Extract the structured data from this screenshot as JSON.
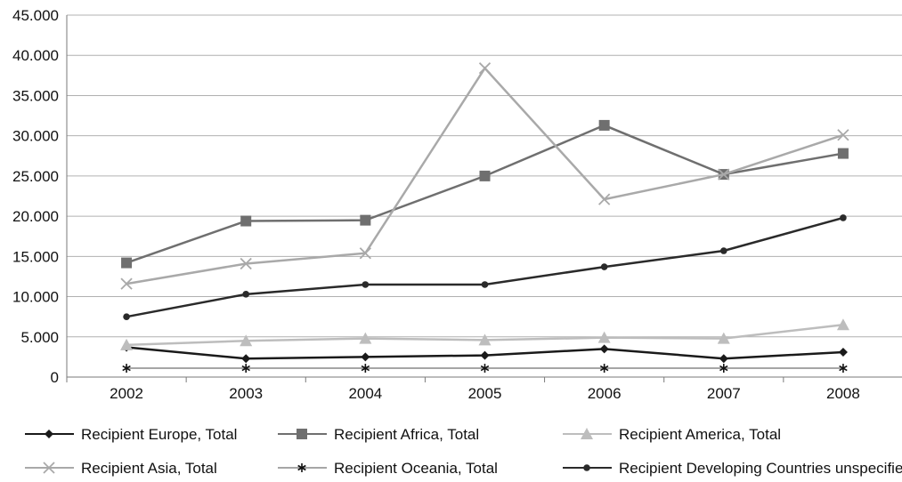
{
  "chart_data": {
    "type": "line",
    "title": "",
    "xlabel": "",
    "ylabel": "",
    "categories": [
      "2002",
      "2003",
      "2004",
      "2005",
      "2006",
      "2007",
      "2008"
    ],
    "ylim": [
      0,
      45000
    ],
    "y_ticks": [
      "0",
      "5.000",
      "10.000",
      "15.000",
      "20.000",
      "25.000",
      "30.000",
      "35.000",
      "40.000",
      "45.000"
    ],
    "grid": "horizontal",
    "legend_position": "bottom",
    "series": [
      {
        "name": "Recipient Europe, Total",
        "values": [
          3700,
          2300,
          2500,
          2700,
          3500,
          2300,
          3100
        ],
        "color": "#1a1a1a",
        "marker": "diamond"
      },
      {
        "name": "Recipient Africa, Total",
        "values": [
          14200,
          19400,
          19500,
          25000,
          31300,
          25200,
          27800
        ],
        "color": "#6f6f6f",
        "marker": "square"
      },
      {
        "name": "Recipient America, Total",
        "values": [
          4000,
          4500,
          4800,
          4600,
          4900,
          4800,
          6500
        ],
        "color": "#bdbdbd",
        "marker": "triangle"
      },
      {
        "name": "Recipient Asia, Total",
        "values": [
          11600,
          14100,
          15400,
          38400,
          22100,
          25200,
          30100
        ],
        "color": "#a9a9a9",
        "marker": "x"
      },
      {
        "name": "Recipient Oceania, Total",
        "values": [
          1100,
          1100,
          1100,
          1100,
          1100,
          1100,
          1100
        ],
        "color": "#888888",
        "marker": "asterisk"
      },
      {
        "name": "Recipient Developing Countries unspecified",
        "values": [
          7500,
          10300,
          11500,
          11500,
          13700,
          15700,
          19800
        ],
        "color": "#2a2a2a",
        "marker": "circle"
      }
    ]
  }
}
